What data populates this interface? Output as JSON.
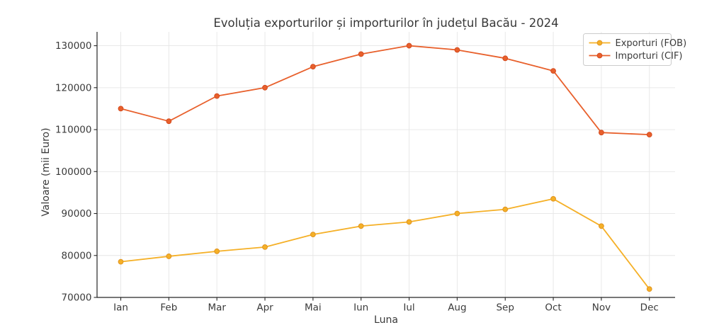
{
  "chart_data": {
    "type": "line",
    "title": "Evoluția exporturilor și importurilor în județul Bacău - 2024",
    "xlabel": "Luna",
    "ylabel": "Valoare (mii Euro)",
    "categories": [
      "Ian",
      "Feb",
      "Mar",
      "Apr",
      "Mai",
      "Iun",
      "Iul",
      "Aug",
      "Sep",
      "Oct",
      "Nov",
      "Dec"
    ],
    "series": [
      {
        "name": "Exporturi (FOB)",
        "color": "#F5B027",
        "marker_edge": "#E09420",
        "values": [
          78500,
          79800,
          81000,
          82000,
          85000,
          87000,
          88000,
          90000,
          91000,
          93500,
          87000,
          72000
        ]
      },
      {
        "name": "Importuri (CIF)",
        "color": "#E8602C",
        "marker_edge": "#D44A1E",
        "values": [
          115000,
          112000,
          118000,
          120000,
          125000,
          128000,
          130000,
          129000,
          127000,
          124000,
          109300,
          108800
        ]
      }
    ],
    "yticks": [
      70000,
      80000,
      90000,
      100000,
      110000,
      120000,
      130000
    ],
    "ylim": [
      70000,
      133300
    ],
    "grid": true,
    "legend_position": "top-right",
    "style": {
      "grid_color": "#e6e6e6",
      "axis_color": "#262626",
      "text_color": "#3a3a3a",
      "legend_border": "#cccccc",
      "legend_bg": "rgba(255,255,255,0.85)"
    }
  }
}
